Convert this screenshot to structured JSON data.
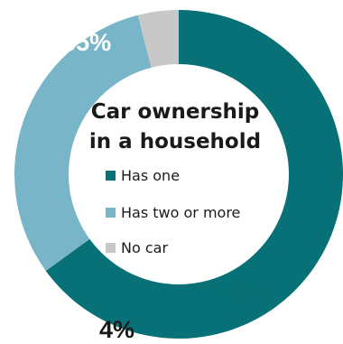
{
  "chart_data": {
    "type": "pie",
    "title": "Car ownership in a household",
    "title_lines": [
      "Car ownership",
      "in a household"
    ],
    "slices": [
      {
        "label": "Has one",
        "value": 65,
        "value_label": "65%",
        "color": "#087177",
        "label_color": "#ffffff"
      },
      {
        "label": "Has two or more",
        "value": 31,
        "value_label": "31%",
        "color": "#78b5c9",
        "label_color": "#087177"
      },
      {
        "label": "No car",
        "value": 4,
        "value_label": "4%",
        "color": "#c8c8c8",
        "label_color": "#1a1a1a"
      }
    ],
    "legend_placement": "center"
  }
}
